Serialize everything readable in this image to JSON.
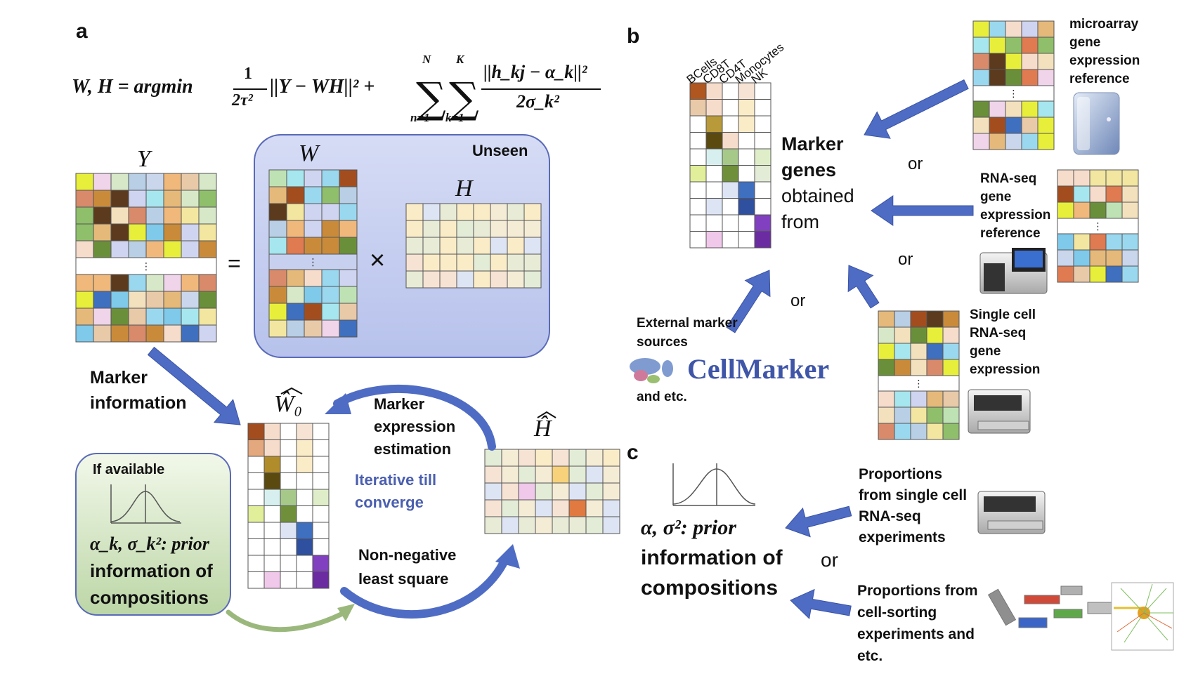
{
  "panels": {
    "a": "a",
    "b": "b",
    "c": "c"
  },
  "equation": {
    "lhs": "W, H = argmin",
    "frac1_num": "1",
    "frac1_den": "2τ²",
    "norm_term": "||Y − WH||² +",
    "sum1_top": "N",
    "sum1_bottom": "n=1",
    "sum2_top": "K",
    "sum2_bottom": "k=1",
    "frac2_num": "||h_kj − α_k||²",
    "frac2_den": "2σ_k²"
  },
  "panel_a": {
    "Y_label": "Y",
    "W_label": "W",
    "H_label": "H",
    "equals": "=",
    "times": "×",
    "unseen": "Unseen",
    "W0_label": "Ŵ₀",
    "Hhat_label": "Ĥ",
    "marker_info": "Marker information",
    "marker_expr": "Marker expression estimation",
    "iterative": "Iterative till converge",
    "nnls": "Non-negative least square",
    "if_available": "If available",
    "prior_line1": "α_k, σ_k²: prior",
    "prior_line2": "information of",
    "prior_line3": "compositions",
    "ellipsis": "⋮"
  },
  "panel_b": {
    "cell_types": [
      "BCells",
      "CD8T",
      "CD4T",
      "Monocytes",
      "NK"
    ],
    "marker_genes_1": "Marker",
    "marker_genes_2": "genes",
    "marker_genes_3": "obtained",
    "marker_genes_4": "from",
    "microarray": "microarray gene expression reference",
    "rnaseq": "RNA-seq gene expression reference",
    "scrnaseq": "Single cell RNA-seq gene expression",
    "external": "External marker sources",
    "cellmarker": "CellMarker",
    "and_etc": "and etc.",
    "or1": "or",
    "or2": "or",
    "or3": "or"
  },
  "panel_c": {
    "prior_1": "α, σ²: prior",
    "prior_2": "information of",
    "prior_3": "compositions",
    "or": "or",
    "sc_props": "Proportions from single cell RNA-seq experiments",
    "sort_props": "Proportions from cell-sorting experiments and etc."
  },
  "colors": {
    "arrow_blue": "#4f6cc4",
    "unseen_bg": "#c5cdee",
    "prior_bg": "#d9e8c9",
    "grid_line": "#555555"
  }
}
